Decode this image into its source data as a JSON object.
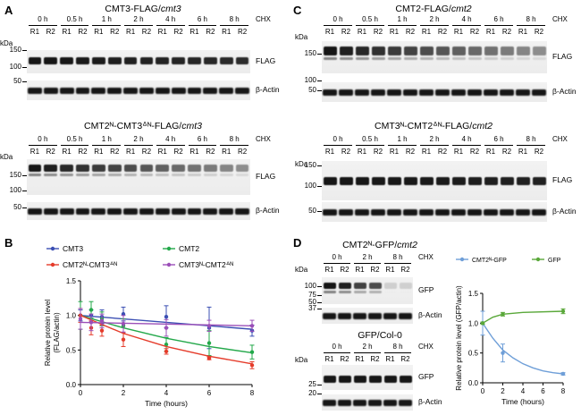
{
  "panels": {
    "A": {
      "letter": "A",
      "top": {
        "title": "CMT3-FLAG/",
        "title_italic": "cmt3",
        "kda": "kDa",
        "markers": [
          "150",
          "100",
          "50"
        ],
        "label_flag": "FLAG",
        "label_actin": "β-Actin",
        "treatment": "CHX",
        "timepoints": [
          "0 h",
          "0.5 h",
          "1 h",
          "2 h",
          "4 h",
          "6 h",
          "8 h"
        ]
      },
      "bottom": {
        "title": "CMT2ᴺ-CMT3ᐞᴺ-FLAG/",
        "title_italic": "cmt3",
        "kda": "kDa",
        "markers": [
          "150",
          "100",
          "50"
        ],
        "label_flag": "FLAG",
        "label_actin": "β-Actin",
        "treatment": "CHX",
        "timepoints": [
          "0 h",
          "0.5 h",
          "1 h",
          "2 h",
          "4 h",
          "6 h",
          "8 h"
        ]
      }
    },
    "C": {
      "letter": "C",
      "top": {
        "title": "CMT2-FLAG/",
        "title_italic": "cmt2",
        "kda": "kDa",
        "markers": [
          "150",
          "100",
          "50"
        ],
        "label_flag": "FLAG",
        "label_actin": "β-Actin",
        "treatment": "CHX",
        "timepoints": [
          "0 h",
          "0.5 h",
          "1 h",
          "2 h",
          "4 h",
          "6 h",
          "8 h"
        ]
      },
      "bottom": {
        "title": "CMT3ᴺ-CMT2ᐞᴺ-FLAG/",
        "title_italic": "cmt2",
        "kda": "kDa",
        "markers": [
          "150",
          "100",
          "50"
        ],
        "label_flag": "FLAG",
        "label_actin": "β-Actin",
        "treatment": "CHX",
        "timepoints": [
          "0 h",
          "0.5 h",
          "1 h",
          "2 h",
          "4 h",
          "6 h",
          "8 h"
        ]
      }
    },
    "B": {
      "letter": "B"
    },
    "D": {
      "letter": "D",
      "top": {
        "title": "CMT2ᴺ-GFP/",
        "title_italic": "cmt2",
        "kda": "kDa",
        "markers": [
          "100",
          "75",
          "50",
          "37"
        ],
        "label_gfp": "GFP",
        "label_actin": "β-Actin",
        "treatment": "CHX",
        "timepoints": [
          "0 h",
          "2 h",
          "8 h"
        ]
      },
      "bottom": {
        "title": "GFP/Col-0",
        "kda": "kDa",
        "markers": [
          "25",
          "20"
        ],
        "label_gfp": "GFP",
        "label_actin": "β-Actin",
        "treatment": "CHX",
        "timepoints": [
          "0 h",
          "2 h",
          "8 h"
        ]
      }
    }
  },
  "replicates": [
    "R1",
    "R2"
  ],
  "chart_data": [
    {
      "type": "line",
      "panel": "B",
      "xlabel": "Time (hours)",
      "ylabel": "Relative protein level\n(FLAG/actin)",
      "xlim": [
        0,
        8
      ],
      "ylim": [
        0,
        1.5
      ],
      "xticks": [
        0,
        2,
        4,
        6,
        8
      ],
      "yticks": [
        0.0,
        0.5,
        1.0,
        1.5
      ],
      "ytick_labels": [
        "0.0",
        "0.5",
        "1.0",
        "1.5"
      ],
      "legend_position": "top",
      "series": [
        {
          "name": "CMT3",
          "color": "#3b4fb3",
          "x": [
            0,
            0.5,
            1,
            2,
            4,
            6,
            8
          ],
          "y": [
            1.0,
            1.0,
            0.98,
            1.02,
            0.98,
            0.82,
            0.78
          ],
          "err": [
            0.08,
            0.08,
            0.1,
            0.1,
            0.16,
            0.3,
            0.08
          ],
          "fit": [
            [
              0,
              1.0
            ],
            [
              8,
              0.8
            ]
          ]
        },
        {
          "name": "CMT2",
          "color": "#23a84a",
          "x": [
            0,
            0.5,
            1,
            2,
            4,
            6,
            8
          ],
          "y": [
            1.0,
            1.08,
            0.95,
            0.85,
            0.58,
            0.6,
            0.47
          ],
          "err": [
            0.2,
            0.12,
            0.1,
            0.1,
            0.1,
            0.18,
            0.1
          ],
          "fit": [
            [
              0,
              1.0
            ],
            [
              2,
              0.82
            ],
            [
              4,
              0.67
            ],
            [
              6,
              0.55
            ],
            [
              8,
              0.46
            ]
          ]
        },
        {
          "name": "CMT2ᴺ-CMT3ᐞᴺ",
          "color": "#e53b2a",
          "x": [
            0,
            0.5,
            1,
            2,
            4,
            6,
            8
          ],
          "y": [
            1.0,
            0.82,
            0.78,
            0.65,
            0.48,
            0.38,
            0.28
          ],
          "err": [
            0.1,
            0.1,
            0.08,
            0.1,
            0.04,
            0.02,
            0.05
          ],
          "fit": [
            [
              0,
              1.0
            ],
            [
              2,
              0.74
            ],
            [
              4,
              0.55
            ],
            [
              6,
              0.41
            ],
            [
              8,
              0.3
            ]
          ]
        },
        {
          "name": "CMT3ᴺ-CMT2ᐞᴺ",
          "color": "#9b4fb8",
          "x": [
            0,
            0.5,
            1,
            2,
            4,
            6,
            8
          ],
          "y": [
            0.95,
            0.9,
            0.92,
            0.88,
            0.82,
            0.85,
            0.85
          ],
          "err": [
            0.15,
            0.12,
            0.1,
            0.12,
            0.12,
            0.08,
            0.08
          ],
          "fit": [
            [
              0,
              0.9
            ],
            [
              8,
              0.85
            ]
          ]
        }
      ]
    },
    {
      "type": "line",
      "panel": "D",
      "xlabel": "Time (hours)",
      "ylabel": "Relative protein level (GFP/actin)",
      "xlim": [
        0,
        8
      ],
      "ylim": [
        0,
        1.5
      ],
      "xticks": [
        0,
        2,
        4,
        6,
        8
      ],
      "yticks": [
        0.0,
        0.5,
        1.0,
        1.5
      ],
      "ytick_labels": [
        "0.0",
        "0.5",
        "1.0",
        "1.5"
      ],
      "legend_position": "top",
      "series": [
        {
          "name": "CMT2ᴺ-GFP",
          "color": "#6f9fd8",
          "x": [
            0,
            2,
            8
          ],
          "y": [
            1.0,
            0.5,
            0.15
          ],
          "err": [
            0.2,
            0.15,
            0.02
          ],
          "fit": [
            [
              0,
              1.0
            ],
            [
              1,
              0.75
            ],
            [
              2,
              0.55
            ],
            [
              3,
              0.42
            ],
            [
              4,
              0.32
            ],
            [
              5,
              0.25
            ],
            [
              6,
              0.2
            ],
            [
              7,
              0.17
            ],
            [
              8,
              0.15
            ]
          ]
        },
        {
          "name": "GFP",
          "color": "#5aa83a",
          "x": [
            0,
            2,
            8
          ],
          "y": [
            1.0,
            1.15,
            1.2
          ],
          "err": [
            0.02,
            0.03,
            0.04
          ],
          "fit": [
            [
              0,
              1.0
            ],
            [
              1,
              1.1
            ],
            [
              2,
              1.15
            ],
            [
              4,
              1.18
            ],
            [
              8,
              1.2
            ]
          ]
        }
      ]
    }
  ]
}
